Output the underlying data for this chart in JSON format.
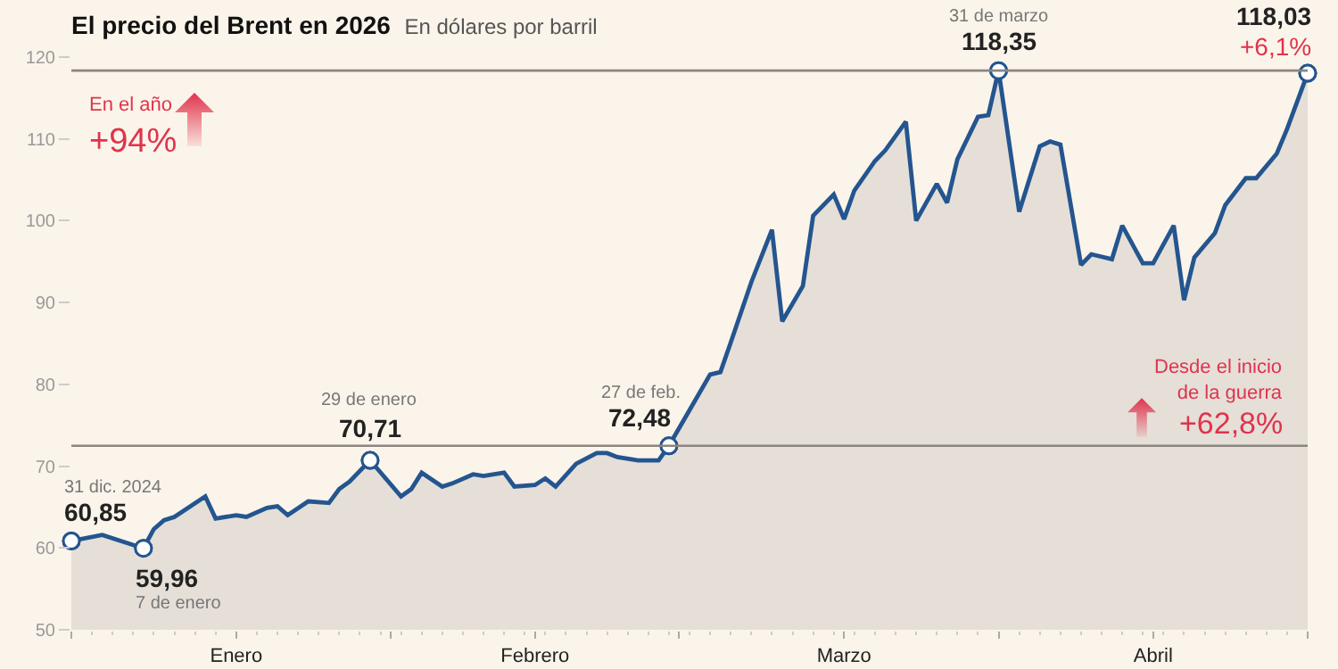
{
  "chart_data": {
    "type": "area",
    "title": "El precio del Brent en 2026",
    "subtitle": "En dólares por barril",
    "x": [
      "2025-12-31",
      "2026-01-03",
      "2026-01-07",
      "2026-01-08",
      "2026-01-09",
      "2026-01-10",
      "2026-01-13",
      "2026-01-14",
      "2026-01-16",
      "2026-01-17",
      "2026-01-19",
      "2026-01-20",
      "2026-01-21",
      "2026-01-23",
      "2026-01-25",
      "2026-01-26",
      "2026-01-27",
      "2026-01-29",
      "2026-02-01",
      "2026-02-02",
      "2026-02-03",
      "2026-02-05",
      "2026-02-06",
      "2026-02-08",
      "2026-02-09",
      "2026-02-11",
      "2026-02-12",
      "2026-02-14",
      "2026-02-15",
      "2026-02-16",
      "2026-02-18",
      "2026-02-20",
      "2026-02-21",
      "2026-02-22",
      "2026-02-24",
      "2026-02-25",
      "2026-02-26",
      "2026-02-27",
      "2026-03-03",
      "2026-03-04",
      "2026-03-05",
      "2026-03-07",
      "2026-03-09",
      "2026-03-10",
      "2026-03-12",
      "2026-03-13",
      "2026-03-15",
      "2026-03-16",
      "2026-03-17",
      "2026-03-19",
      "2026-03-20",
      "2026-03-22",
      "2026-03-23",
      "2026-03-25",
      "2026-03-26",
      "2026-03-27",
      "2026-03-29",
      "2026-03-30",
      "2026-03-31",
      "2026-04-02",
      "2026-04-04",
      "2026-04-05",
      "2026-04-06",
      "2026-04-08",
      "2026-04-09",
      "2026-04-11",
      "2026-04-12",
      "2026-04-14",
      "2026-04-15",
      "2026-04-17",
      "2026-04-18",
      "2026-04-19",
      "2026-04-21",
      "2026-04-22",
      "2026-04-24",
      "2026-04-25",
      "2026-04-27",
      "2026-04-28",
      "2026-04-30"
    ],
    "series": [
      {
        "color": "#24558f",
        "values": [
          60.85,
          61.6,
          59.96,
          62.3,
          63.4,
          63.8,
          66.3,
          63.6,
          64.0,
          63.8,
          64.9,
          65.1,
          64.0,
          65.7,
          65.5,
          67.2,
          68.1,
          70.71,
          66.3,
          67.2,
          69.2,
          67.5,
          67.9,
          69.0,
          68.8,
          69.2,
          67.5,
          67.7,
          68.5,
          67.5,
          70.3,
          71.6,
          71.6,
          71.1,
          70.7,
          70.7,
          70.7,
          72.48,
          81.2,
          81.5,
          85.1,
          92.5,
          98.9,
          87.7,
          92.0,
          100.6,
          103.2,
          100.2,
          103.7,
          107.3,
          108.6,
          112.1,
          100.0,
          104.5,
          102.2,
          107.5,
          112.7,
          112.9,
          118.35,
          101.1,
          109.1,
          109.7,
          109.3,
          94.6,
          95.9,
          95.3,
          99.4,
          94.8,
          94.8,
          99.4,
          90.3,
          95.5,
          98.5,
          101.9,
          105.2,
          105.2,
          108.2,
          111.2,
          118.03
        ]
      }
    ],
    "xlim": [
      "2025-12-31",
      "2026-04-30"
    ],
    "xticks": [
      {
        "value": "2025-12-31",
        "label": null
      },
      {
        "value": "2026-01-16",
        "label": "Enero"
      },
      {
        "value": "2026-01-31",
        "label": null
      },
      {
        "value": "2026-02-14",
        "label": "Febrero"
      },
      {
        "value": "2026-02-28",
        "label": null
      },
      {
        "value": "2026-03-16",
        "label": "Marzo"
      },
      {
        "value": "2026-03-31",
        "label": null
      },
      {
        "value": "2026-04-15",
        "label": "Abril"
      },
      {
        "value": "2026-04-30",
        "label": null
      }
    ],
    "ylim": [
      50,
      120
    ],
    "yticks": [
      50,
      60,
      70,
      80,
      90,
      100,
      110,
      120
    ],
    "ref_lines": [
      {
        "axis": "y",
        "value": 118.35,
        "color": "#8c8580"
      },
      {
        "axis": "y",
        "value": 72.48,
        "color": "#8c8580"
      }
    ],
    "annotations": [
      {
        "text": "31 dic. 2024",
        "x": "2025-12-31",
        "y": 60.85
      },
      {
        "text": "60,85",
        "x": "2025-12-31",
        "y": 60.85
      },
      {
        "text": "59,96",
        "x": "2026-01-07",
        "y": 59.96
      },
      {
        "text": "7 de enero",
        "x": "2026-01-07",
        "y": 59.96
      },
      {
        "text": "29 de enero",
        "x": "2026-01-29",
        "y": 70.71
      },
      {
        "text": "70,71",
        "x": "2026-01-29",
        "y": 70.71
      },
      {
        "text": "27 de feb.",
        "x": "2026-02-27",
        "y": 72.48
      },
      {
        "text": "72,48",
        "x": "2026-02-27",
        "y": 72.48
      },
      {
        "text": "31 de marzo",
        "x": "2026-03-31",
        "y": 118.35
      },
      {
        "text": "118,35",
        "x": "2026-03-31",
        "y": 118.35
      },
      {
        "text": "118,03",
        "x": "2026-04-30",
        "y": 118.03
      },
      {
        "text": "+6,1%",
        "x": "2026-04-30",
        "y": 118.03
      },
      "En el año",
      "+94%",
      "Desde el inicio\nde la guerra",
      "+62,8%"
    ],
    "grid": false,
    "marker": "none",
    "line_style": "solid"
  }
}
